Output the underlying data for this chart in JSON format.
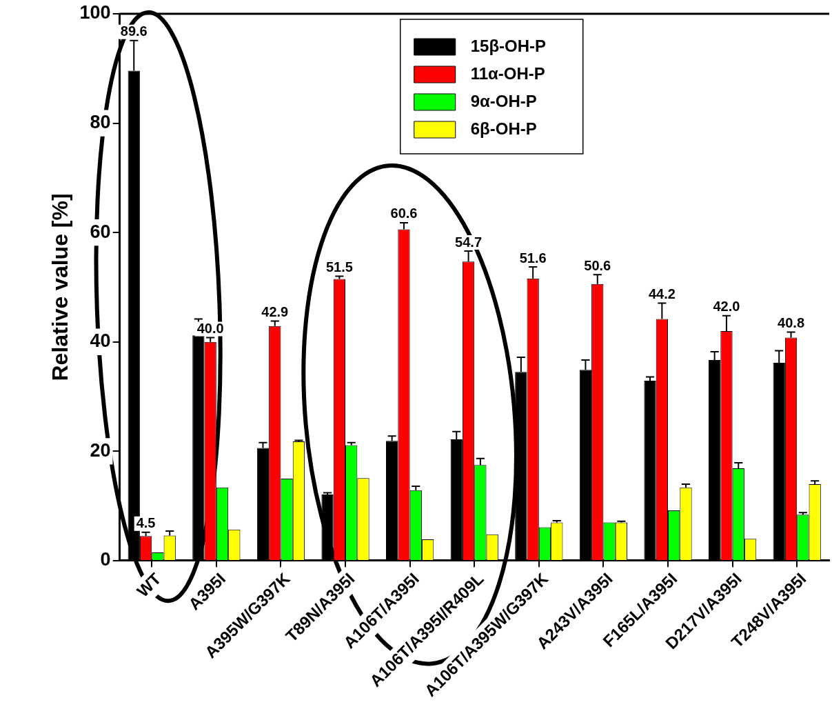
{
  "chart_data": {
    "type": "bar",
    "ylabel": "Relative value [%]",
    "categories": [
      "WT",
      "A395I",
      "A395W/G397K",
      "T89N/A395I",
      "A106T/A395I",
      "A106T/A395I/R409L",
      "A106T/A395W/G397K",
      "A243V/A395I",
      "F165L/A395I",
      "D217V/A395I",
      "T248V/A395I"
    ],
    "series": [
      {
        "name": "15β-OH-P",
        "color": "#000000",
        "values": [
          89.6,
          41.2,
          20.6,
          12.1,
          21.9,
          22.2,
          34.5,
          34.9,
          32.9,
          36.7,
          36.2
        ],
        "errors": [
          [
            89.6,
            95.1
          ],
          [
            41.2,
            44.2
          ],
          [
            20.6,
            21.6
          ],
          [
            12.1,
            12.4
          ],
          [
            21.9,
            22.8
          ],
          [
            22.2,
            23.6
          ],
          [
            34.5,
            37.2
          ],
          [
            34.9,
            36.7
          ],
          [
            32.9,
            33.6
          ],
          [
            36.7,
            38.2
          ],
          [
            36.2,
            38.4
          ]
        ],
        "value_labels": [
          "89.6",
          null,
          null,
          null,
          null,
          null,
          null,
          null,
          null,
          null,
          null
        ]
      },
      {
        "name": "11α-OH-P",
        "color": "#ff0000",
        "values": [
          4.5,
          40.0,
          42.9,
          51.5,
          60.6,
          54.7,
          51.6,
          50.6,
          44.2,
          42.0,
          40.8
        ],
        "errors": [
          [
            4.5,
            5.2
          ],
          [
            40.0,
            40.8
          ],
          [
            42.9,
            43.8
          ],
          [
            51.5,
            52.0
          ],
          [
            60.6,
            61.8
          ],
          [
            54.7,
            56.6
          ],
          [
            51.6,
            53.7
          ],
          [
            50.6,
            52.3
          ],
          [
            44.2,
            47.1
          ],
          [
            42.0,
            44.8
          ],
          [
            40.8,
            41.8
          ]
        ],
        "value_labels": [
          "4.5",
          "40.0",
          "42.9",
          "51.5",
          "60.6",
          "54.7",
          "51.6",
          "50.6",
          "44.2",
          "42.0",
          "40.8"
        ]
      },
      {
        "name": "9α-OH-P",
        "color": "#00ff00",
        "values": [
          1.5,
          13.4,
          15.0,
          21.1,
          12.9,
          17.5,
          6.1,
          7.0,
          9.2,
          16.9,
          8.4
        ],
        "errors": [
          null,
          null,
          null,
          [
            21.1,
            21.6
          ],
          [
            12.9,
            13.6
          ],
          [
            17.5,
            18.7
          ],
          null,
          null,
          null,
          [
            16.9,
            17.9
          ],
          [
            8.4,
            8.8
          ]
        ]
      },
      {
        "name": "6β-OH-P",
        "color": "#ffff00",
        "values": [
          4.6,
          5.7,
          21.8,
          15.1,
          3.9,
          4.8,
          7.0,
          7.0,
          13.4,
          4.0,
          14.0
        ],
        "errors": [
          [
            4.6,
            5.4
          ],
          null,
          [
            21.8,
            22.0
          ],
          null,
          null,
          null,
          [
            7.0,
            7.3
          ],
          [
            7.0,
            7.2
          ],
          [
            13.4,
            14.0
          ],
          null,
          [
            14.0,
            14.6
          ]
        ]
      }
    ],
    "ylim": [
      0,
      100
    ],
    "yticks": [
      0,
      20,
      40,
      60,
      80,
      100
    ],
    "grid": false,
    "legend": "top"
  }
}
